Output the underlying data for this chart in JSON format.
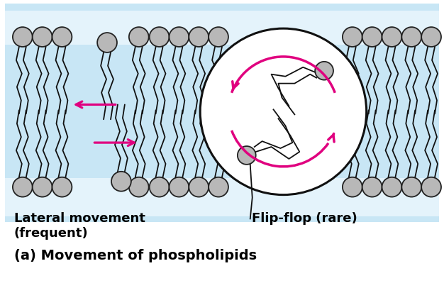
{
  "bg_color": "#c8e6f5",
  "white_stripe_color": "#e4f3fb",
  "head_color": "#b8b8b8",
  "head_grad_color": "#e0e0e0",
  "head_edge": "#222222",
  "tail_color": "#111111",
  "arrow_color": "#e0007f",
  "circle_face": "#ffffff",
  "circle_edge": "#111111",
  "title": "(a) Movement of phospholipids",
  "label_lateral": "Lateral movement\n(frequent)",
  "label_flipflop": "Flip-flop (rare)",
  "fig_bg": "#ffffff"
}
